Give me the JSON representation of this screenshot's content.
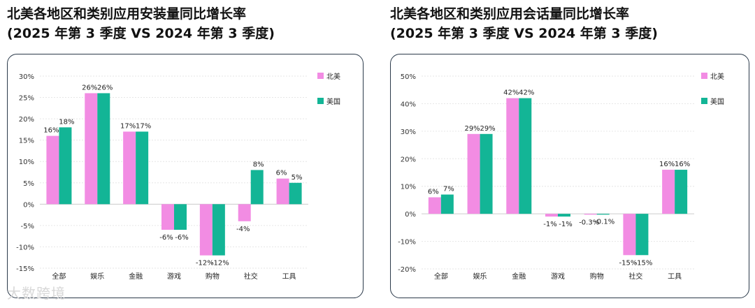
{
  "colors": {
    "north_america": "#f28ce3",
    "usa": "#13b596",
    "grid": "#e6e6e6",
    "axis": "#cccccc"
  },
  "watermark": "大数跨境",
  "chart_data": [
    {
      "type": "bar",
      "title_line1": "北美各地区和类别应用安装量同比增长率",
      "title_line2": "(2025 年第 3 季度 VS 2024 年第 3 季度)",
      "categories": [
        "全部",
        "娱乐",
        "金融",
        "游戏",
        "购物",
        "社交",
        "工具"
      ],
      "ylim": [
        -15,
        30
      ],
      "yticks": [
        30,
        25,
        20,
        15,
        10,
        5,
        0,
        -5,
        -10,
        -15
      ],
      "ytick_labels": [
        "30%",
        "25%",
        "20%",
        "15%",
        "10%",
        "5%",
        "0%",
        "-5%",
        "-10%",
        "-15%"
      ],
      "series": [
        {
          "name": "北美",
          "values": [
            16,
            26,
            17,
            -6,
            -12,
            -4,
            6
          ],
          "labels": [
            "16%",
            "26%",
            "17%",
            "-6%",
            "-12%",
            "-4%",
            "6%"
          ]
        },
        {
          "name": "美国",
          "values": [
            18,
            26,
            17,
            -6,
            -12,
            8,
            5
          ],
          "labels": [
            "18%",
            "26%",
            "17%",
            "-6%",
            "-12%",
            "8%",
            "5%"
          ]
        }
      ],
      "legend": "top-right"
    },
    {
      "type": "bar",
      "title_line1": "北美各地区和类别应用会话量同比增长率",
      "title_line2": "(2025 年第 3 季度 VS 2024 年第 3 季度)",
      "categories": [
        "全部",
        "娱乐",
        "金融",
        "游戏",
        "购物",
        "社交",
        "工具"
      ],
      "ylim": [
        -20,
        50
      ],
      "yticks": [
        50,
        40,
        30,
        20,
        10,
        0,
        -10,
        -20
      ],
      "ytick_labels": [
        "50%",
        "40%",
        "30%",
        "20%",
        "10%",
        "0%",
        "-10%",
        "-20%"
      ],
      "series": [
        {
          "name": "北美",
          "values": [
            6,
            29,
            42,
            -1,
            -0.3,
            -15,
            16
          ],
          "labels": [
            "6%",
            "29%",
            "42%",
            "-1%",
            "-0.3%",
            "-15%",
            "16%"
          ]
        },
        {
          "name": "美国",
          "values": [
            7,
            29,
            42,
            -1,
            -0.1,
            -15,
            16
          ],
          "labels": [
            "7%",
            "29%",
            "42%",
            "-1%",
            "-0.1%",
            "-15%",
            "16%"
          ]
        }
      ],
      "legend": "top-right"
    }
  ]
}
